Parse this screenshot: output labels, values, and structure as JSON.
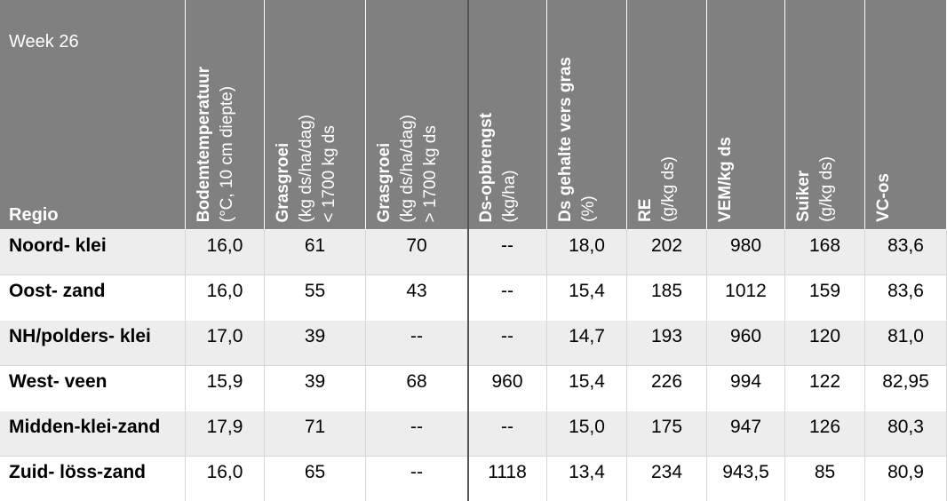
{
  "header": {
    "week": "Week 26",
    "region": "Regio",
    "columns": [
      {
        "title": "Bodemtemperatuur",
        "lines": [
          "(°C, 10 cm diepte)"
        ]
      },
      {
        "title": "Grasgroei",
        "lines": [
          "(kg ds/ha/dag)",
          "< 1700 kg ds"
        ]
      },
      {
        "title": "Grasgroei",
        "lines": [
          "(kg ds/ha/dag)",
          "> 1700 kg ds"
        ]
      },
      {
        "title": "Ds-opbrengst",
        "lines": [
          "(kg/ha)"
        ]
      },
      {
        "title": "Ds gehalte vers gras",
        "lines": [
          "(%)"
        ]
      },
      {
        "title": "RE",
        "lines": [
          "(g/kg ds)"
        ]
      },
      {
        "title": "VEM/kg ds",
        "lines": []
      },
      {
        "title": "Suiker",
        "lines": [
          "(g/kg ds)"
        ]
      },
      {
        "title": "VC-os",
        "lines": []
      }
    ]
  },
  "rows": [
    {
      "region": "Noord- klei",
      "values": [
        "16,0",
        "61",
        "70",
        "--",
        "18,0",
        "202",
        "980",
        "168",
        "83,6"
      ]
    },
    {
      "region": "Oost- zand",
      "values": [
        "16,0",
        "55",
        "43",
        "--",
        "15,4",
        "185",
        "1012",
        "159",
        "83,6"
      ]
    },
    {
      "region": "NH/polders- klei",
      "values": [
        "17,0",
        "39",
        "--",
        "--",
        "14,7",
        "193",
        "960",
        "120",
        "81,0"
      ]
    },
    {
      "region": "West- veen",
      "values": [
        "15,9",
        "39",
        "68",
        "960",
        "15,4",
        "226",
        "994",
        "122",
        "82,95"
      ]
    },
    {
      "region": "Midden-klei-zand",
      "values": [
        "17,9",
        "71",
        "--",
        "--",
        "15,0",
        "175",
        "947",
        "126",
        "80,3"
      ]
    },
    {
      "region": "Zuid- löss-zand",
      "values": [
        "16,0",
        "65",
        "--",
        "1118",
        "13,4",
        "234",
        "943,5",
        "85",
        "80,9"
      ]
    }
  ]
}
